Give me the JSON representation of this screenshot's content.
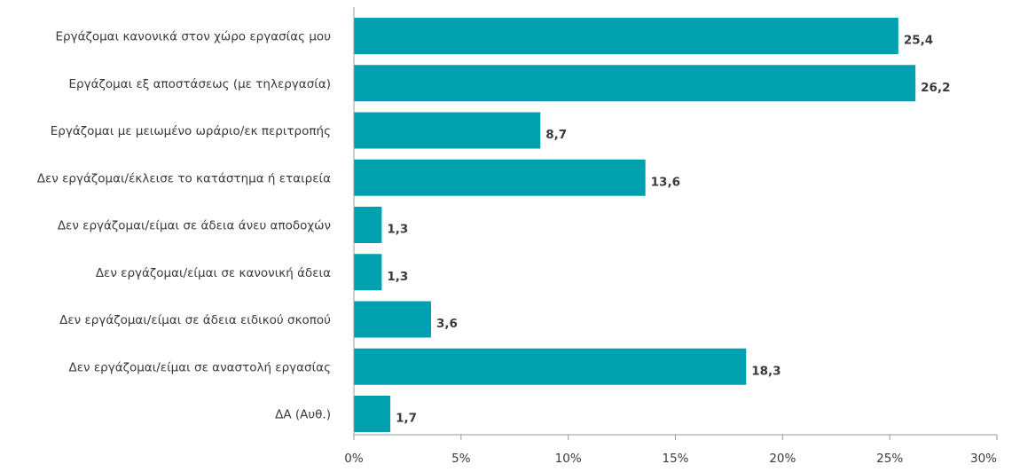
{
  "chart_data": {
    "type": "bar",
    "orientation": "horizontal",
    "categories": [
      "Εργάζομαι κανονικά στον χώρο εργασίας μου",
      "Εργάζομαι εξ αποστάσεως (με τηλεργασία)",
      "Εργάζομαι με μειωμένο ωράριο/εκ περιτροπής",
      "Δεν εργάζομαι/έκλεισε το κατάστημα ή εταιρεία",
      "Δεν εργάζομαι/είμαι σε άδεια άνευ αποδοχών",
      "Δεν εργάζομαι/είμαι σε κανονική άδεια",
      "Δεν εργάζομαι/είμαι σε άδεια ειδικού σκοπού",
      "Δεν εργάζομαι/είμαι σε αναστολή εργασίας",
      "ΔΑ (Αυθ.)"
    ],
    "values": [
      25.4,
      26.2,
      8.7,
      13.6,
      1.3,
      1.3,
      3.6,
      18.3,
      1.7
    ],
    "value_labels": [
      "25,4",
      "26,2",
      "8,7",
      "13,6",
      "1,3",
      "1,3",
      "3,6",
      "18,3",
      "1,7"
    ],
    "x_ticks": [
      0,
      5,
      10,
      15,
      20,
      25,
      30
    ],
    "x_tick_labels": [
      "0%",
      "5%",
      "10%",
      "15%",
      "20%",
      "25%",
      "30%"
    ],
    "xlim": [
      0,
      30
    ],
    "title": "",
    "xlabel": "",
    "ylabel": "",
    "grid": false,
    "legend": "none",
    "colors": {
      "bar": "#00a0ae",
      "axis": "#9a9a9a",
      "text": "#3a3a3a"
    }
  }
}
